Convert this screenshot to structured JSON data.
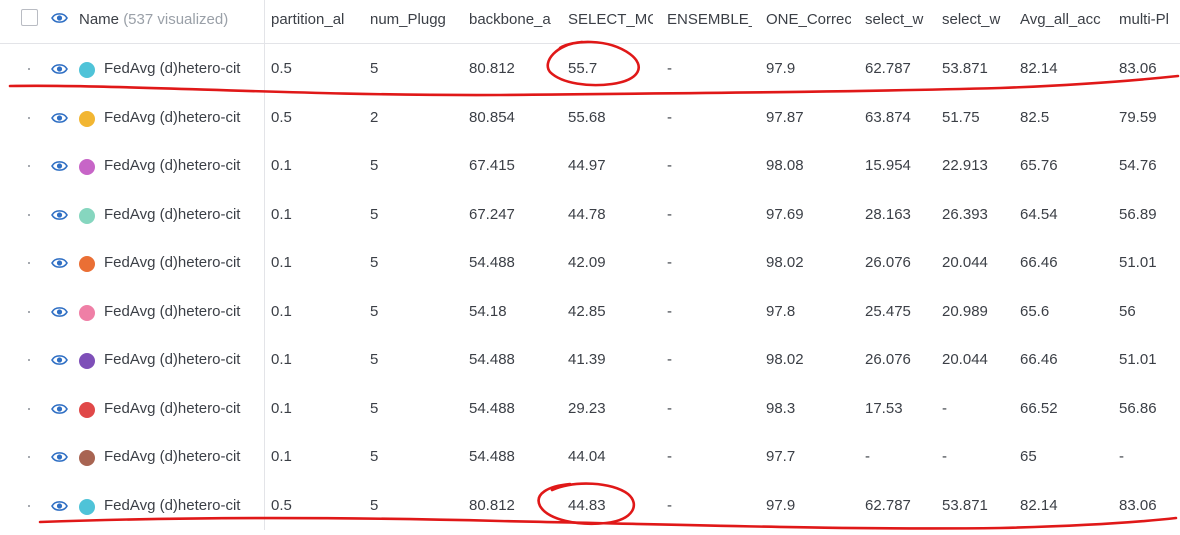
{
  "header": {
    "name_label": "Name",
    "visualized_count": "(537 visualized)",
    "columns": [
      "partition_al",
      "num_Plugg",
      "backbone_a",
      "SELECT_MC",
      "ENSEMBLE_",
      "ONE_Correc",
      "select_w",
      "select_w",
      "Avg_all_acc",
      "multi-Pl"
    ]
  },
  "rows": [
    {
      "name": "FedAvg (d)hetero-cit",
      "color": "#4fc3d8",
      "cells": [
        "0.5",
        "5",
        "80.812",
        "55.7",
        "-",
        "97.9",
        "62.787",
        "53.871",
        "82.14",
        "83.06"
      ]
    },
    {
      "name": "FedAvg (d)hetero-cit",
      "color": "#f2b632",
      "cells": [
        "0.5",
        "2",
        "80.854",
        "55.68",
        "-",
        "97.87",
        "63.874",
        "51.75",
        "82.5",
        "79.59"
      ]
    },
    {
      "name": "FedAvg (d)hetero-cit",
      "color": "#c765c7",
      "cells": [
        "0.1",
        "5",
        "67.415",
        "44.97",
        "-",
        "98.08",
        "15.954",
        "22.913",
        "65.76",
        "54.76"
      ]
    },
    {
      "name": "FedAvg (d)hetero-cit",
      "color": "#86d6bf",
      "cells": [
        "0.1",
        "5",
        "67.247",
        "44.78",
        "-",
        "97.69",
        "28.163",
        "26.393",
        "64.54",
        "56.89"
      ]
    },
    {
      "name": "FedAvg (d)hetero-cit",
      "color": "#ea6f35",
      "cells": [
        "0.1",
        "5",
        "54.488",
        "42.09",
        "-",
        "98.02",
        "26.076",
        "20.044",
        "66.46",
        "51.01"
      ]
    },
    {
      "name": "FedAvg (d)hetero-cit",
      "color": "#ef7fa6",
      "cells": [
        "0.1",
        "5",
        "54.18",
        "42.85",
        "-",
        "97.8",
        "25.475",
        "20.989",
        "65.6",
        "56"
      ]
    },
    {
      "name": "FedAvg (d)hetero-cit",
      "color": "#7e4fb8",
      "cells": [
        "0.1",
        "5",
        "54.488",
        "41.39",
        "-",
        "98.02",
        "26.076",
        "20.044",
        "66.46",
        "51.01"
      ]
    },
    {
      "name": "FedAvg (d)hetero-cit",
      "color": "#e04848",
      "cells": [
        "0.1",
        "5",
        "54.488",
        "29.23",
        "-",
        "98.3",
        "17.53",
        "-",
        "66.52",
        "56.86"
      ]
    },
    {
      "name": "FedAvg (d)hetero-cit",
      "color": "#a86452",
      "cells": [
        "0.1",
        "5",
        "54.488",
        "44.04",
        "-",
        "97.7",
        "-",
        "-",
        "65",
        "-"
      ]
    },
    {
      "name": "FedAvg (d)hetero-cit",
      "color": "#4fc3d8",
      "cells": [
        "0.5",
        "5",
        "80.812",
        "44.83",
        "-",
        "97.9",
        "62.787",
        "53.871",
        "82.14",
        "83.06"
      ]
    }
  ],
  "colors": {
    "eye": "#2f6fc4",
    "annotation": "#e01818",
    "border": "#e3e4e8"
  },
  "icons": {
    "eye": "eye-icon",
    "checkbox": "select-all-checkbox"
  }
}
